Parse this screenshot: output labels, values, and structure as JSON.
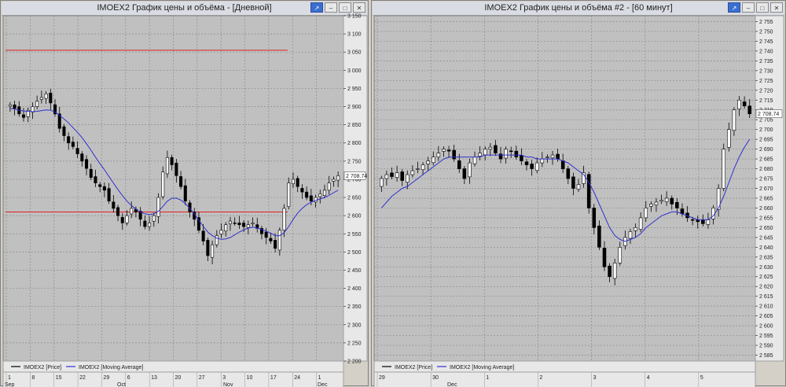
{
  "windows": [
    {
      "title": "IMOEX2 График цены и объёма - [Дневной]",
      "last_price_label": "2 708.74",
      "chart_data": {
        "type": "candlestick",
        "title": "IMOEX2 График цены и объёма - [Дневной]",
        "y_ticks": [
          "3 150",
          "3 100",
          "3 050",
          "3 000",
          "2 950",
          "2 900",
          "2 850",
          "2 800",
          "2 750",
          "2 700",
          "2 650",
          "2 600",
          "2 550",
          "2 500",
          "2 450",
          "2 400",
          "2 350",
          "2 300",
          "2 250",
          "2 200"
        ],
        "ylim": [
          2200,
          3150
        ],
        "x_day_labels": [
          "1",
          "8",
          "15",
          "22",
          "29",
          "6",
          "13",
          "20",
          "27",
          "3",
          "10",
          "17",
          "24",
          "1"
        ],
        "x_month_labels": [
          "Sep",
          "Oct",
          "Nov",
          "Dec"
        ],
        "horizontal_lines": [
          3055,
          2610
        ],
        "legend": [
          "IMOEX2 [Price]",
          "IMOEX2 [Moving Average]"
        ],
        "price_series": [
          2905,
          2895,
          2880,
          2870,
          2890,
          2900,
          2915,
          2925,
          2935,
          2910,
          2880,
          2840,
          2820,
          2800,
          2790,
          2770,
          2750,
          2730,
          2705,
          2690,
          2680,
          2670,
          2640,
          2620,
          2600,
          2580,
          2600,
          2620,
          2610,
          2590,
          2570,
          2580,
          2600,
          2650,
          2720,
          2760,
          2740,
          2710,
          2680,
          2640,
          2610,
          2590,
          2560,
          2530,
          2490,
          2520,
          2545,
          2560,
          2575,
          2585,
          2580,
          2575,
          2570,
          2575,
          2580,
          2565,
          2550,
          2540,
          2530,
          2510,
          2560,
          2620,
          2690,
          2700,
          2680,
          2665,
          2650,
          2640,
          2650,
          2660,
          2670,
          2690,
          2700,
          2710
        ],
        "moving_average": [
          2895,
          2893,
          2890,
          2888,
          2887,
          2886,
          2887,
          2889,
          2891,
          2890,
          2885,
          2876,
          2866,
          2855,
          2842,
          2829,
          2815,
          2798,
          2780,
          2761,
          2743,
          2726,
          2708,
          2690,
          2672,
          2655,
          2640,
          2628,
          2618,
          2610,
          2605,
          2603,
          2605,
          2612,
          2625,
          2640,
          2648,
          2648,
          2643,
          2633,
          2620,
          2605,
          2588,
          2570,
          2555,
          2545,
          2538,
          2535,
          2536,
          2540,
          2547,
          2555,
          2561,
          2566,
          2568,
          2566,
          2562,
          2557,
          2552,
          2545,
          2545,
          2553,
          2570,
          2590,
          2607,
          2620,
          2630,
          2637,
          2642,
          2646,
          2650,
          2656,
          2663,
          2670
        ]
      }
    },
    {
      "title": "IMOEX2 График цены и объёма #2 - [60 минут]",
      "last_price_label": "2 708.74",
      "chart_data": {
        "type": "candlestick",
        "title": "IMOEX2 График цены и объёма #2 - [60 минут]",
        "y_ticks": [
          "2 755",
          "2 750",
          "2 745",
          "2 740",
          "2 735",
          "2 730",
          "2 725",
          "2 720",
          "2 715",
          "2 710",
          "2 705",
          "2 700",
          "2 695",
          "2 690",
          "2 685",
          "2 680",
          "2 675",
          "2 670",
          "2 665",
          "2 660",
          "2 655",
          "2 650",
          "2 645",
          "2 640",
          "2 635",
          "2 630",
          "2 625",
          "2 620",
          "2 615",
          "2 610",
          "2 605",
          "2 600",
          "2 595",
          "2 590",
          "2 585"
        ],
        "ylim": [
          2582,
          2758
        ],
        "x_day_labels": [
          "29",
          "30",
          "1",
          "2",
          "3",
          "4",
          "5"
        ],
        "x_month_labels": [
          "Dec"
        ],
        "legend": [
          "IMOEX2 [Price]",
          "IMOEX2 [Moving Average]"
        ],
        "price_series": [
          2675,
          2677,
          2676,
          2678,
          2674,
          2677,
          2679,
          2680,
          2682,
          2684,
          2686,
          2688,
          2690,
          2689,
          2685,
          2680,
          2675,
          2683,
          2686,
          2688,
          2690,
          2691,
          2688,
          2685,
          2690,
          2689,
          2686,
          2684,
          2682,
          2680,
          2683,
          2685,
          2686,
          2687,
          2685,
          2680,
          2675,
          2670,
          2672,
          2678,
          2660,
          2650,
          2640,
          2630,
          2625,
          2632,
          2640,
          2645,
          2648,
          2650,
          2655,
          2660,
          2662,
          2663,
          2664,
          2665,
          2662,
          2660,
          2657,
          2655,
          2654,
          2653,
          2652,
          2654,
          2660,
          2670,
          2690,
          2700,
          2710,
          2715,
          2712,
          2708
        ],
        "moving_average": [
          2660,
          2663,
          2666,
          2668,
          2670,
          2671,
          2673,
          2675,
          2677,
          2679,
          2681,
          2683,
          2685,
          2686,
          2686,
          2686,
          2686,
          2686,
          2686,
          2686,
          2687,
          2687,
          2687,
          2687,
          2687,
          2687,
          2687,
          2687,
          2686,
          2686,
          2685,
          2685,
          2685,
          2685,
          2685,
          2684,
          2683,
          2681,
          2679,
          2677,
          2673,
          2668,
          2662,
          2656,
          2650,
          2646,
          2644,
          2643,
          2644,
          2645,
          2647,
          2650,
          2652,
          2654,
          2656,
          2657,
          2658,
          2658,
          2657,
          2656,
          2655,
          2654,
          2654,
          2654,
          2656,
          2660,
          2666,
          2673,
          2680,
          2686,
          2691,
          2695
        ]
      }
    }
  ]
}
